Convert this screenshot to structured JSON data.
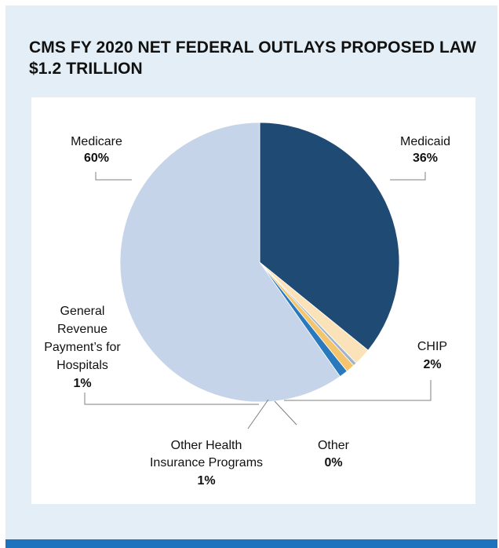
{
  "title_line1": "CMS FY 2020 NET FEDERAL OUTLAYS PROPOSED LAW",
  "title_line2": "$1.2 TRILLION",
  "chart_data": {
    "type": "pie",
    "title": "CMS FY 2020 NET FEDERAL OUTLAYS PROPOSED LAW $1.2 TRILLION",
    "slices": [
      {
        "label": "Medicaid",
        "value": 36,
        "value_label": "36%",
        "color": "#1f4a74"
      },
      {
        "label": "CHIP",
        "value": 2,
        "value_label": "2%",
        "color": "#fbe2b8"
      },
      {
        "label": "Other",
        "value": 0.4,
        "value_label": "0%",
        "color": "#9fb3c9"
      },
      {
        "label": "Other Health Insurance Programs",
        "value": 1,
        "value_label": "1%",
        "color": "#f4c56c"
      },
      {
        "label": "General Revenue Payment’s for Hospitals",
        "value": 1,
        "value_label": "1%",
        "color": "#2a79bd"
      },
      {
        "label": "Medicare",
        "value": 60,
        "value_label": "60%",
        "color": "#c5d4e9"
      }
    ],
    "start": "top, clockwise",
    "legend": "none"
  },
  "labels": {
    "medicare": {
      "name": "Medicare",
      "pct": "60%"
    },
    "medicaid": {
      "name": "Medicaid",
      "pct": "36%"
    },
    "chip": {
      "name": "CHIP",
      "pct": "2%"
    },
    "other": {
      "name": "Other",
      "pct": "0%"
    },
    "other_health": {
      "line1": "Other Health",
      "line2": "Insurance Programs",
      "pct": "1%"
    },
    "general_revenue": {
      "line1": "General",
      "line2": "Revenue",
      "line3": "Payment’s for",
      "line4": "Hospitals",
      "pct": "1%"
    }
  }
}
